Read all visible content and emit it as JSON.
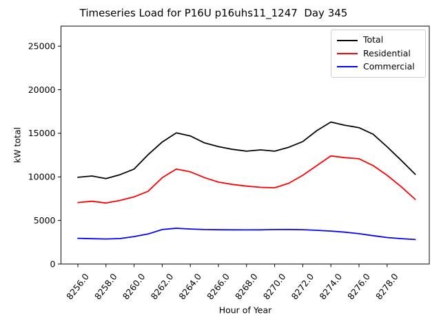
{
  "chart_data": {
    "type": "line",
    "title": "Timeseries Load for P16U p16uhs11_1247  Day 345",
    "xlabel": "Hour of Year",
    "ylabel": "kW total",
    "x": [
      8256,
      8257,
      8258,
      8259,
      8260,
      8261,
      8262,
      8263,
      8264,
      8265,
      8266,
      8267,
      8268,
      8269,
      8270,
      8271,
      8272,
      8273,
      8274,
      8275,
      8276,
      8277,
      8278,
      8279,
      8280
    ],
    "series": [
      {
        "name": "Total",
        "color": "#000000",
        "values": [
          9950,
          10100,
          9800,
          10250,
          10900,
          12550,
          14000,
          15050,
          14700,
          13900,
          13470,
          13160,
          12950,
          13100,
          12950,
          13400,
          14050,
          15310,
          16290,
          15920,
          15650,
          14900,
          13450,
          11900,
          10300
        ]
      },
      {
        "name": "Residential",
        "color": "#ff0000",
        "values": [
          7050,
          7200,
          7000,
          7300,
          7700,
          8350,
          9900,
          10900,
          10580,
          9920,
          9400,
          9130,
          8940,
          8800,
          8750,
          9260,
          10180,
          11290,
          12400,
          12210,
          12080,
          11300,
          10180,
          8870,
          7420
        ]
      },
      {
        "name": "Commercial",
        "color": "#0000ff",
        "values": [
          2950,
          2900,
          2870,
          2920,
          3150,
          3450,
          3950,
          4100,
          4020,
          3950,
          3930,
          3920,
          3910,
          3920,
          3950,
          3960,
          3940,
          3870,
          3780,
          3650,
          3480,
          3250,
          3040,
          2910,
          2810
        ]
      }
    ],
    "xlim": [
      8254.8,
      8281.0
    ],
    "ylim": [
      0,
      27300
    ],
    "x_ticks": [
      8256,
      8258,
      8260,
      8262,
      8264,
      8266,
      8268,
      8270,
      8272,
      8274,
      8276,
      8278
    ],
    "x_tick_labels": [
      "8256.0",
      "8258.0",
      "8260.0",
      "8262.0",
      "8264.0",
      "8266.0",
      "8268.0",
      "8270.0",
      "8272.0",
      "8274.0",
      "8276.0",
      "8278.0"
    ],
    "y_ticks": [
      0,
      5000,
      10000,
      15000,
      20000,
      25000
    ],
    "y_tick_labels": [
      "0",
      "5000",
      "10000",
      "15000",
      "20000",
      "25000"
    ],
    "x_tick_rotation": 52,
    "grid": false,
    "legend_position": "upper right",
    "line_width": 1.8
  }
}
